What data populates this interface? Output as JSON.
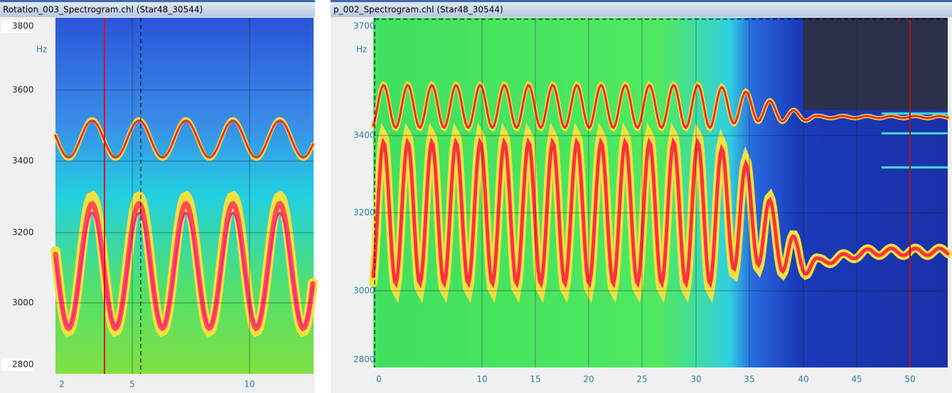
{
  "panels": [
    {
      "title": "Rotation_003_Spectrogram.chl (Star48_30544)",
      "unit": "Hz",
      "yticks": [
        3800,
        3600,
        3400,
        3200,
        3000,
        2800
      ],
      "xticks": [
        2,
        5,
        10
      ]
    },
    {
      "title": "p_002_Spectrogram.chl (Star48_30544)",
      "unit": "Hz",
      "yticks": [
        3700,
        3400,
        3200,
        3000,
        2800
      ],
      "xticks": [
        0,
        10,
        15,
        20,
        25,
        30,
        35,
        40,
        45,
        50
      ]
    }
  ]
}
